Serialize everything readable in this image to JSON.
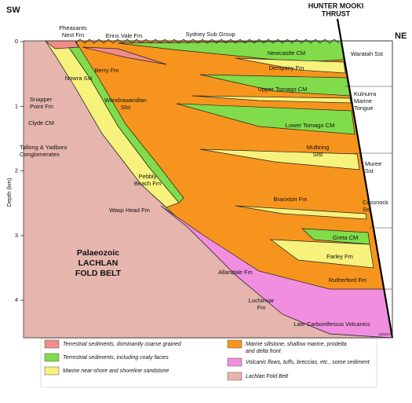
{
  "header": {
    "left": "SW",
    "right": "NE",
    "thrust": [
      "HUNTER MOOKI",
      "THRUST"
    ]
  },
  "axis": {
    "label": "Depth (km)",
    "ticks": [
      0,
      1,
      2,
      3,
      4
    ]
  },
  "labels": [
    {
      "lines": [
        "Pheasants",
        "Nest Fm"
      ]
    },
    {
      "lines": [
        "Erins Vale Fm"
      ]
    },
    {
      "lines": [
        "Sydney Sub Group"
      ]
    },
    {
      "lines": [
        "Newcastle CM"
      ]
    },
    {
      "lines": [
        "Waratah Sst"
      ]
    },
    {
      "lines": [
        "Dempsey Fm"
      ]
    },
    {
      "lines": [
        "Berry Fm"
      ]
    },
    {
      "lines": [
        "Nowra Sst"
      ]
    },
    {
      "lines": [
        "Upper Tomago CM"
      ]
    },
    {
      "lines": [
        "Kulnurra",
        "Marine",
        "Tongue"
      ]
    },
    {
      "lines": [
        "Snapper",
        "Point Fm"
      ]
    },
    {
      "lines": [
        "Wandrawandian",
        "Slst"
      ]
    },
    {
      "lines": [
        "Clyde CM"
      ]
    },
    {
      "lines": [
        "Lower Tomago CM"
      ]
    },
    {
      "lines": [
        "Mulbring",
        "Slst"
      ]
    },
    {
      "lines": [
        "Muree",
        "Sst"
      ]
    },
    {
      "lines": [
        "Tallong & Yadboro",
        "Conglomerates"
      ]
    },
    {
      "lines": [
        "Pebbly",
        "Beach Fm"
      ]
    },
    {
      "lines": [
        "Branxton Fm"
      ]
    },
    {
      "lines": [
        "Wasp Head Fm"
      ]
    },
    {
      "lines": [
        "Cessnock",
        "Sst"
      ]
    },
    {
      "lines": [
        "Greta CM"
      ]
    },
    {
      "lines": [
        "Farley Fm"
      ]
    },
    {
      "lines": [
        "Palaeozoic",
        "LACHLAN",
        "FOLD BELT"
      ]
    },
    {
      "lines": [
        "Allandale Fm"
      ]
    },
    {
      "lines": [
        "Rutherford Fm"
      ]
    },
    {
      "lines": [
        "Lochinvar",
        "Fm"
      ]
    },
    {
      "lines": [
        "Late Carboniferous Volcanics"
      ]
    },
    {
      "lines": [
        "12/N/17"
      ]
    }
  ],
  "legend": [
    {
      "lines": [
        "Terrestrial sediments, dominantly coarse grained"
      ],
      "color": "#f28b8b"
    },
    {
      "lines": [
        "Terrestrial sediments, including coaly facies"
      ],
      "color": "#80dc4a"
    },
    {
      "lines": [
        "Marine near-shore and shoreline sandstone"
      ],
      "color": "#f6f27c"
    },
    {
      "lines": [
        "Marine siltstone, shallow marine, prodelta",
        "and delta front"
      ],
      "color": "#f7941d"
    },
    {
      "lines": [
        "Volcanic flows, tuffs, breccias, etc., some sediment"
      ],
      "color": "#f28ee0"
    },
    {
      "lines": [
        "Lachlan Fold Belt"
      ],
      "color": "#e6b5ae"
    }
  ]
}
